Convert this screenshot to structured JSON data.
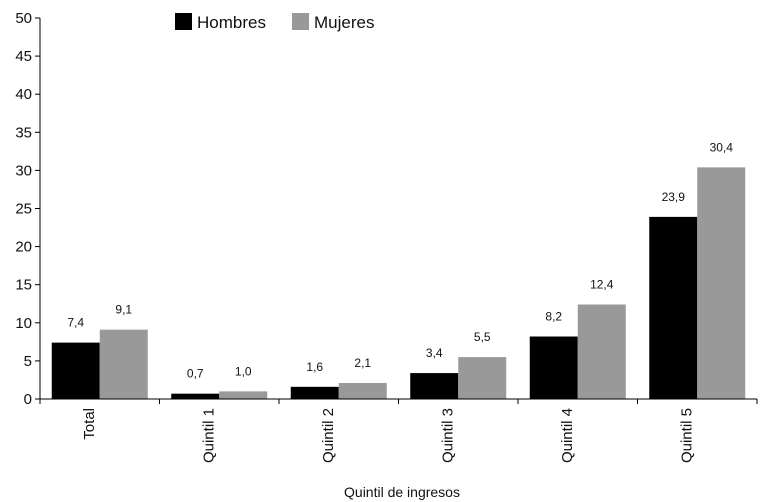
{
  "chart_data": {
    "type": "bar",
    "title": "",
    "xlabel": "Quintil de ingresos",
    "ylabel": "",
    "ylim": [
      0,
      50
    ],
    "y_ticks": [
      "0",
      "5",
      "10",
      "15",
      "20",
      "25",
      "30",
      "35",
      "40",
      "45",
      "50"
    ],
    "categories": [
      "Total",
      "Quintil 1",
      "Quintil 2",
      "Quintil 3",
      "Quintil 4",
      "Quintil 5"
    ],
    "series": [
      {
        "name": "Hombres",
        "color": "#000000",
        "values": [
          7.4,
          0.7,
          1.6,
          3.4,
          8.2,
          23.9
        ],
        "labels": [
          "7,4",
          "0,7",
          "1,6",
          "3,4",
          "8,2",
          "23,9"
        ]
      },
      {
        "name": "Mujeres",
        "color": "#999999",
        "values": [
          9.1,
          1.0,
          2.1,
          5.5,
          12.4,
          30.4
        ],
        "labels": [
          "9,1",
          "1,0",
          "2,1",
          "5,5",
          "12,4",
          "30,4"
        ]
      }
    ],
    "legend_position": "top",
    "grid": false
  }
}
